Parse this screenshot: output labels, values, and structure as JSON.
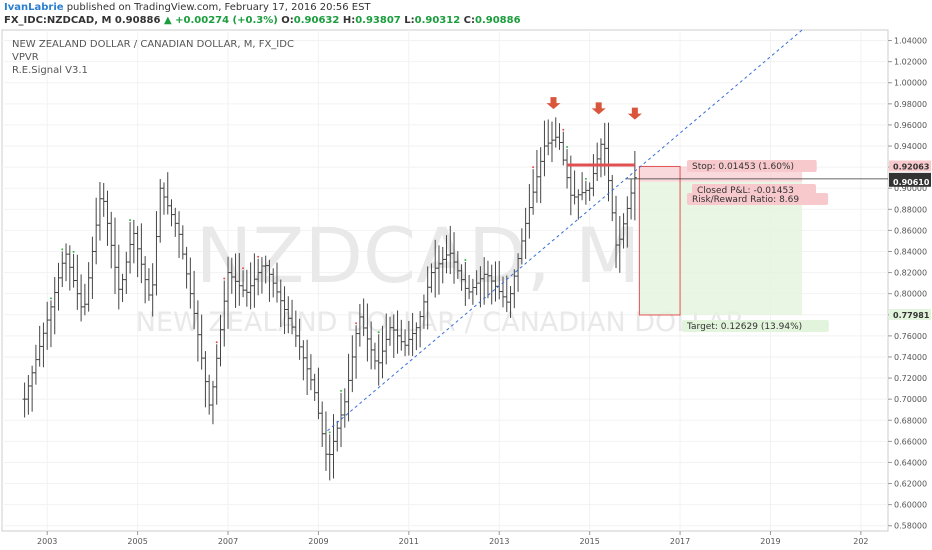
{
  "header": {
    "author": "IvanLabrie",
    "published": " published on TradingView.com, February 17, 2016 20:56 EST",
    "symbol": "FX_IDC:NZDCAD, M",
    "last": "0.90886",
    "change": "+0.00274 (+0.3%)",
    "o_label": "O:",
    "o": "0.90632",
    "h_label": "H:",
    "h": "0.93807",
    "l_label": "L:",
    "l": "0.90312",
    "c_label": "C:",
    "c": "0.90886"
  },
  "legend": {
    "title": "NEW ZEALAND DOLLAR / CANADIAN DOLLAR, M, FX_IDC",
    "ind1": "VPVR",
    "ind2": "R.E.Signal V3.1"
  },
  "watermark": {
    "big": "NZDCAD, M",
    "small": "NEW ZEALAND DOLLAR / CANADIAN DOLLAR"
  },
  "colors": {
    "up": "#333333",
    "down": "#333333",
    "stop_zone": "#f7c9cc",
    "target_zone": "#e2f4dc",
    "trend": "#3a6fd8",
    "arrow": "#d9553b"
  },
  "chart_data": {
    "type": "ohlc",
    "ylim": [
      0.575,
      1.05
    ],
    "yticks": [
      "0.58000",
      "0.60000",
      "0.62000",
      "0.64000",
      "0.66000",
      "0.68000",
      "0.70000",
      "0.72000",
      "0.74000",
      "0.76000",
      "0.78000",
      "0.80000",
      "0.82000",
      "0.84000",
      "0.86000",
      "0.88000",
      "0.90000",
      "0.92000",
      "0.94000",
      "0.96000",
      "0.98000",
      "1.00000",
      "1.02000",
      "1.04000"
    ],
    "xticks": [
      "2003",
      "2005",
      "2007",
      "2009",
      "2011",
      "2013",
      "2015",
      "2017",
      "2019",
      "202"
    ],
    "price_badges": [
      {
        "value": 0.92063,
        "label": "0.92063",
        "bg": "#f7c9cc",
        "fg": "#333333"
      },
      {
        "value": 0.90886,
        "label": "0.90886",
        "bg": "#333333",
        "fg": "#ffffff"
      },
      {
        "value": 0.9061,
        "label": "0.90610",
        "bg": "#333333",
        "fg": "#ffffff"
      },
      {
        "value": 0.77981,
        "label": "0.77981",
        "bg": "#e2f4dc",
        "fg": "#333333"
      }
    ],
    "position": {
      "stop_label": "Stop: 0.01453 (1.60%)",
      "pnl_label": "Closed P&L: -0.01453",
      "rr_label": "Risk/Reward Ratio: 8.69",
      "target_label": "Target: 0.12629 (13.94%)",
      "entry": 0.9061,
      "stop": 0.92063,
      "target": 0.77981,
      "close_line": 0.90886
    },
    "trendline": {
      "x": [
        2009.2,
        2019.7
      ],
      "y": [
        0.67,
        1.05
      ]
    },
    "resistance": {
      "x": [
        2014.5,
        2016.0
      ],
      "y": 0.922
    },
    "arrows": [
      {
        "x": 2014.2,
        "y": 0.975
      },
      {
        "x": 2015.2,
        "y": 0.97
      },
      {
        "x": 2016.0,
        "y": 0.965
      }
    ],
    "series_anchors": {
      "x": [
        2002.5,
        2003.1,
        2003.4,
        2003.8,
        2004.2,
        2004.6,
        2004.9,
        2005.3,
        2005.5,
        2005.9,
        2006.3,
        2006.6,
        2007.0,
        2007.4,
        2007.8,
        2008.1,
        2008.5,
        2008.9,
        2009.2,
        2009.6,
        2009.9,
        2010.3,
        2010.6,
        2010.9,
        2011.2,
        2011.5,
        2011.9,
        2012.3,
        2012.7,
        2013.2,
        2013.6,
        2014.0,
        2014.3,
        2014.6,
        2015.0,
        2015.3,
        2015.6,
        2016.0
      ],
      "y": [
        0.7,
        0.79,
        0.84,
        0.78,
        0.9,
        0.8,
        0.86,
        0.79,
        0.9,
        0.86,
        0.77,
        0.69,
        0.82,
        0.8,
        0.83,
        0.8,
        0.76,
        0.71,
        0.64,
        0.7,
        0.78,
        0.73,
        0.77,
        0.75,
        0.77,
        0.82,
        0.84,
        0.8,
        0.82,
        0.79,
        0.87,
        0.94,
        0.95,
        0.89,
        0.9,
        0.95,
        0.84,
        0.91
      ]
    }
  }
}
